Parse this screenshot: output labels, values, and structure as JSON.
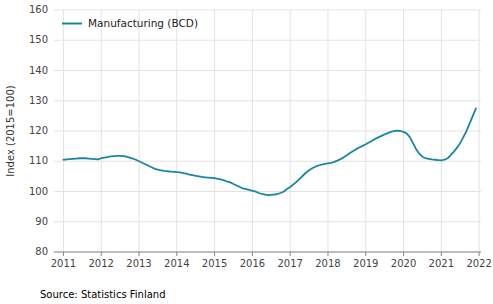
{
  "chart_data": {
    "type": "line",
    "y_label": "Index (2015=100)",
    "source": "Source: Statistics Finland",
    "x": [
      2011.0,
      2011.083,
      2011.167,
      2011.25,
      2011.333,
      2011.417,
      2011.5,
      2011.583,
      2011.667,
      2011.75,
      2011.833,
      2011.917,
      2012.0,
      2012.083,
      2012.167,
      2012.25,
      2012.333,
      2012.417,
      2012.5,
      2012.583,
      2012.667,
      2012.75,
      2012.833,
      2012.917,
      2013.0,
      2013.083,
      2013.167,
      2013.25,
      2013.333,
      2013.417,
      2013.5,
      2013.583,
      2013.667,
      2013.75,
      2013.833,
      2013.917,
      2014.0,
      2014.083,
      2014.167,
      2014.25,
      2014.333,
      2014.417,
      2014.5,
      2014.583,
      2014.667,
      2014.75,
      2014.833,
      2014.917,
      2015.0,
      2015.083,
      2015.167,
      2015.25,
      2015.333,
      2015.417,
      2015.5,
      2015.583,
      2015.667,
      2015.75,
      2015.833,
      2015.917,
      2016.0,
      2016.083,
      2016.167,
      2016.25,
      2016.333,
      2016.417,
      2016.5,
      2016.583,
      2016.667,
      2016.75,
      2016.833,
      2016.917,
      2017.0,
      2017.083,
      2017.167,
      2017.25,
      2017.333,
      2017.417,
      2017.5,
      2017.583,
      2017.667,
      2017.75,
      2017.833,
      2017.917,
      2018.0,
      2018.083,
      2018.167,
      2018.25,
      2018.333,
      2018.417,
      2018.5,
      2018.583,
      2018.667,
      2018.75,
      2018.833,
      2018.917,
      2019.0,
      2019.083,
      2019.167,
      2019.25,
      2019.333,
      2019.417,
      2019.5,
      2019.583,
      2019.667,
      2019.75,
      2019.833,
      2019.917,
      2020.0,
      2020.083,
      2020.167,
      2020.25,
      2020.333,
      2020.417,
      2020.5,
      2020.583,
      2020.667,
      2020.75,
      2020.833,
      2020.917,
      2021.0,
      2021.083,
      2021.167,
      2021.25,
      2021.333,
      2021.417,
      2021.5,
      2021.583,
      2021.667,
      2021.75,
      2021.833,
      2021.917
    ],
    "series": [
      {
        "name": "Manufacturing (BCD)",
        "color": "#1a87a0",
        "values": [
          110.5,
          110.6,
          110.7,
          110.8,
          110.9,
          111.0,
          111.0,
          111.0,
          110.9,
          110.8,
          110.7,
          110.6,
          111.0,
          111.2,
          111.4,
          111.6,
          111.7,
          111.8,
          111.8,
          111.7,
          111.5,
          111.2,
          110.9,
          110.5,
          110.0,
          109.5,
          109.0,
          108.5,
          108.0,
          107.5,
          107.2,
          107.0,
          106.8,
          106.7,
          106.6,
          106.5,
          106.4,
          106.3,
          106.1,
          105.9,
          105.6,
          105.4,
          105.2,
          105.0,
          104.8,
          104.7,
          104.6,
          104.5,
          104.4,
          104.2,
          104.0,
          103.7,
          103.3,
          103.0,
          102.5,
          102.0,
          101.5,
          101.0,
          100.8,
          100.5,
          100.2,
          100.0,
          99.5,
          99.2,
          99.0,
          98.8,
          98.9,
          99.0,
          99.2,
          99.5,
          100.0,
          100.8,
          101.5,
          102.3,
          103.2,
          104.2,
          105.2,
          106.2,
          107.0,
          107.7,
          108.2,
          108.6,
          108.9,
          109.1,
          109.3,
          109.5,
          109.8,
          110.2,
          110.7,
          111.3,
          112.0,
          112.7,
          113.4,
          114.0,
          114.6,
          115.1,
          115.6,
          116.2,
          116.8,
          117.4,
          117.9,
          118.4,
          118.9,
          119.3,
          119.7,
          120.0,
          120.1,
          120.0,
          119.7,
          119.2,
          118.0,
          116.0,
          114.0,
          112.5,
          111.5,
          111.0,
          110.8,
          110.6,
          110.5,
          110.4,
          110.3,
          110.5,
          111.0,
          112.0,
          113.2,
          114.5,
          116.0,
          118.0,
          120.0,
          122.5,
          125.0,
          127.5
        ]
      }
    ],
    "xlim": [
      2010.75,
      2022.05
    ],
    "xticks": [
      2011,
      2012,
      2013,
      2014,
      2015,
      2016,
      2017,
      2018,
      2019,
      2020,
      2021,
      2022
    ],
    "ylim": [
      80,
      160
    ],
    "yticks": [
      80,
      90,
      100,
      110,
      120,
      130,
      140,
      150,
      160
    ],
    "grid": true,
    "legend": "upper left"
  }
}
